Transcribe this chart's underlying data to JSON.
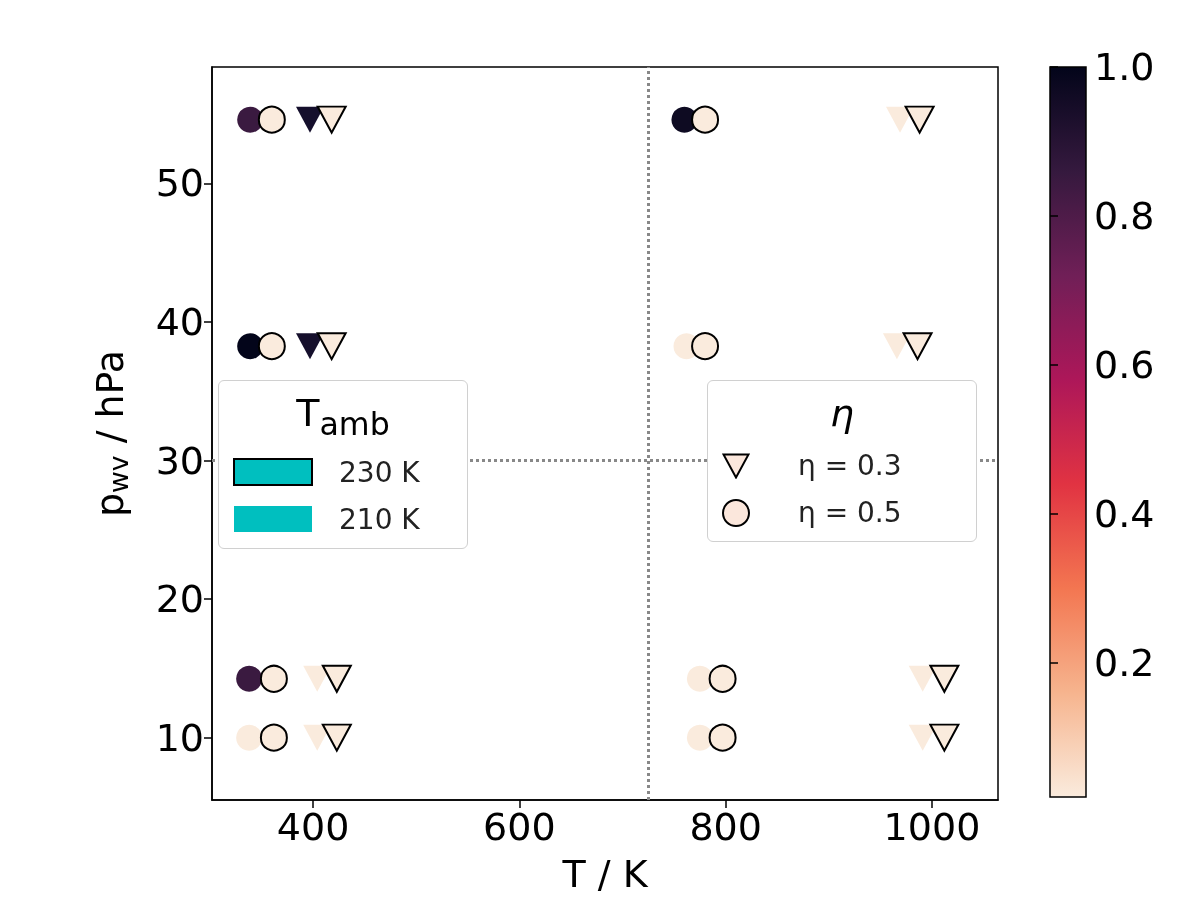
{
  "chart_data": {
    "type": "scatter",
    "xlabel": "T / K",
    "ylabel": "p$_{wv}$ / hPa",
    "xlim": [
      302,
      1064
    ],
    "xticks": [
      400,
      600,
      800,
      1000
    ],
    "ylim": [
      5.5,
      58.4
    ],
    "yticks": [
      10,
      20,
      30,
      40,
      50
    ],
    "grid": false,
    "clim": [
      0.02,
      1.0
    ],
    "cticks": [
      0.2,
      0.4,
      0.6,
      0.8,
      {
        "value": 1.0,
        "label": "1.0"
      }
    ],
    "annotations": [
      "T$_{amb}$",
      "230 K",
      "210 K",
      "η",
      "η = 0.3",
      "η = 0.5"
    ],
    "ref_lines": [
      {
        "axis": "x",
        "value": 725,
        "label": null,
        "color": "#888888",
        "line_style": "dotted"
      },
      {
        "axis": "y",
        "value": 30,
        "label": null,
        "color": "#888888",
        "line_style": "dotted"
      }
    ],
    "series": [
      {
        "marker": "circle",
        "x": [
          339,
          339,
          338,
          338,
          760,
          762,
          775,
          775
        ],
        "values": [
          54.6,
          38.25,
          14.25,
          10,
          54.6,
          38.25,
          14.25,
          10
        ],
        "colors": [
          "#3a1a40",
          "#03051a",
          "#3a1a40",
          "#faebdd",
          "#0e0b22",
          "#faebdd",
          "#faebdd",
          "#faebdd"
        ]
      },
      {
        "marker": "circle",
        "line_style": "solid",
        "x": [
          360,
          360,
          362,
          362,
          780,
          780,
          797,
          797
        ],
        "values": [
          54.6,
          38.25,
          14.25,
          10,
          54.6,
          38.25,
          14.25,
          10
        ],
        "color": "#faebdd"
      },
      {
        "marker": "triangle",
        "x": [
          397,
          397,
          404,
          404,
          969,
          966,
          991,
          991
        ],
        "values": [
          54.6,
          38.25,
          14.25,
          10,
          54.6,
          38.25,
          14.25,
          10
        ],
        "colors": [
          "#150f2c",
          "#150f2c",
          "#faebdd",
          "#faebdd",
          "#faebdd",
          "#faebdd",
          "#faebdd",
          "#faebdd"
        ]
      },
      {
        "marker": "triangle",
        "line_style": "solid",
        "x": [
          418,
          418,
          423,
          423,
          988,
          986,
          1012,
          1012
        ],
        "values": [
          54.6,
          38.25,
          14.25,
          10,
          54.6,
          38.25,
          14.25,
          10
        ],
        "color": "#faebdd"
      }
    ]
  }
}
